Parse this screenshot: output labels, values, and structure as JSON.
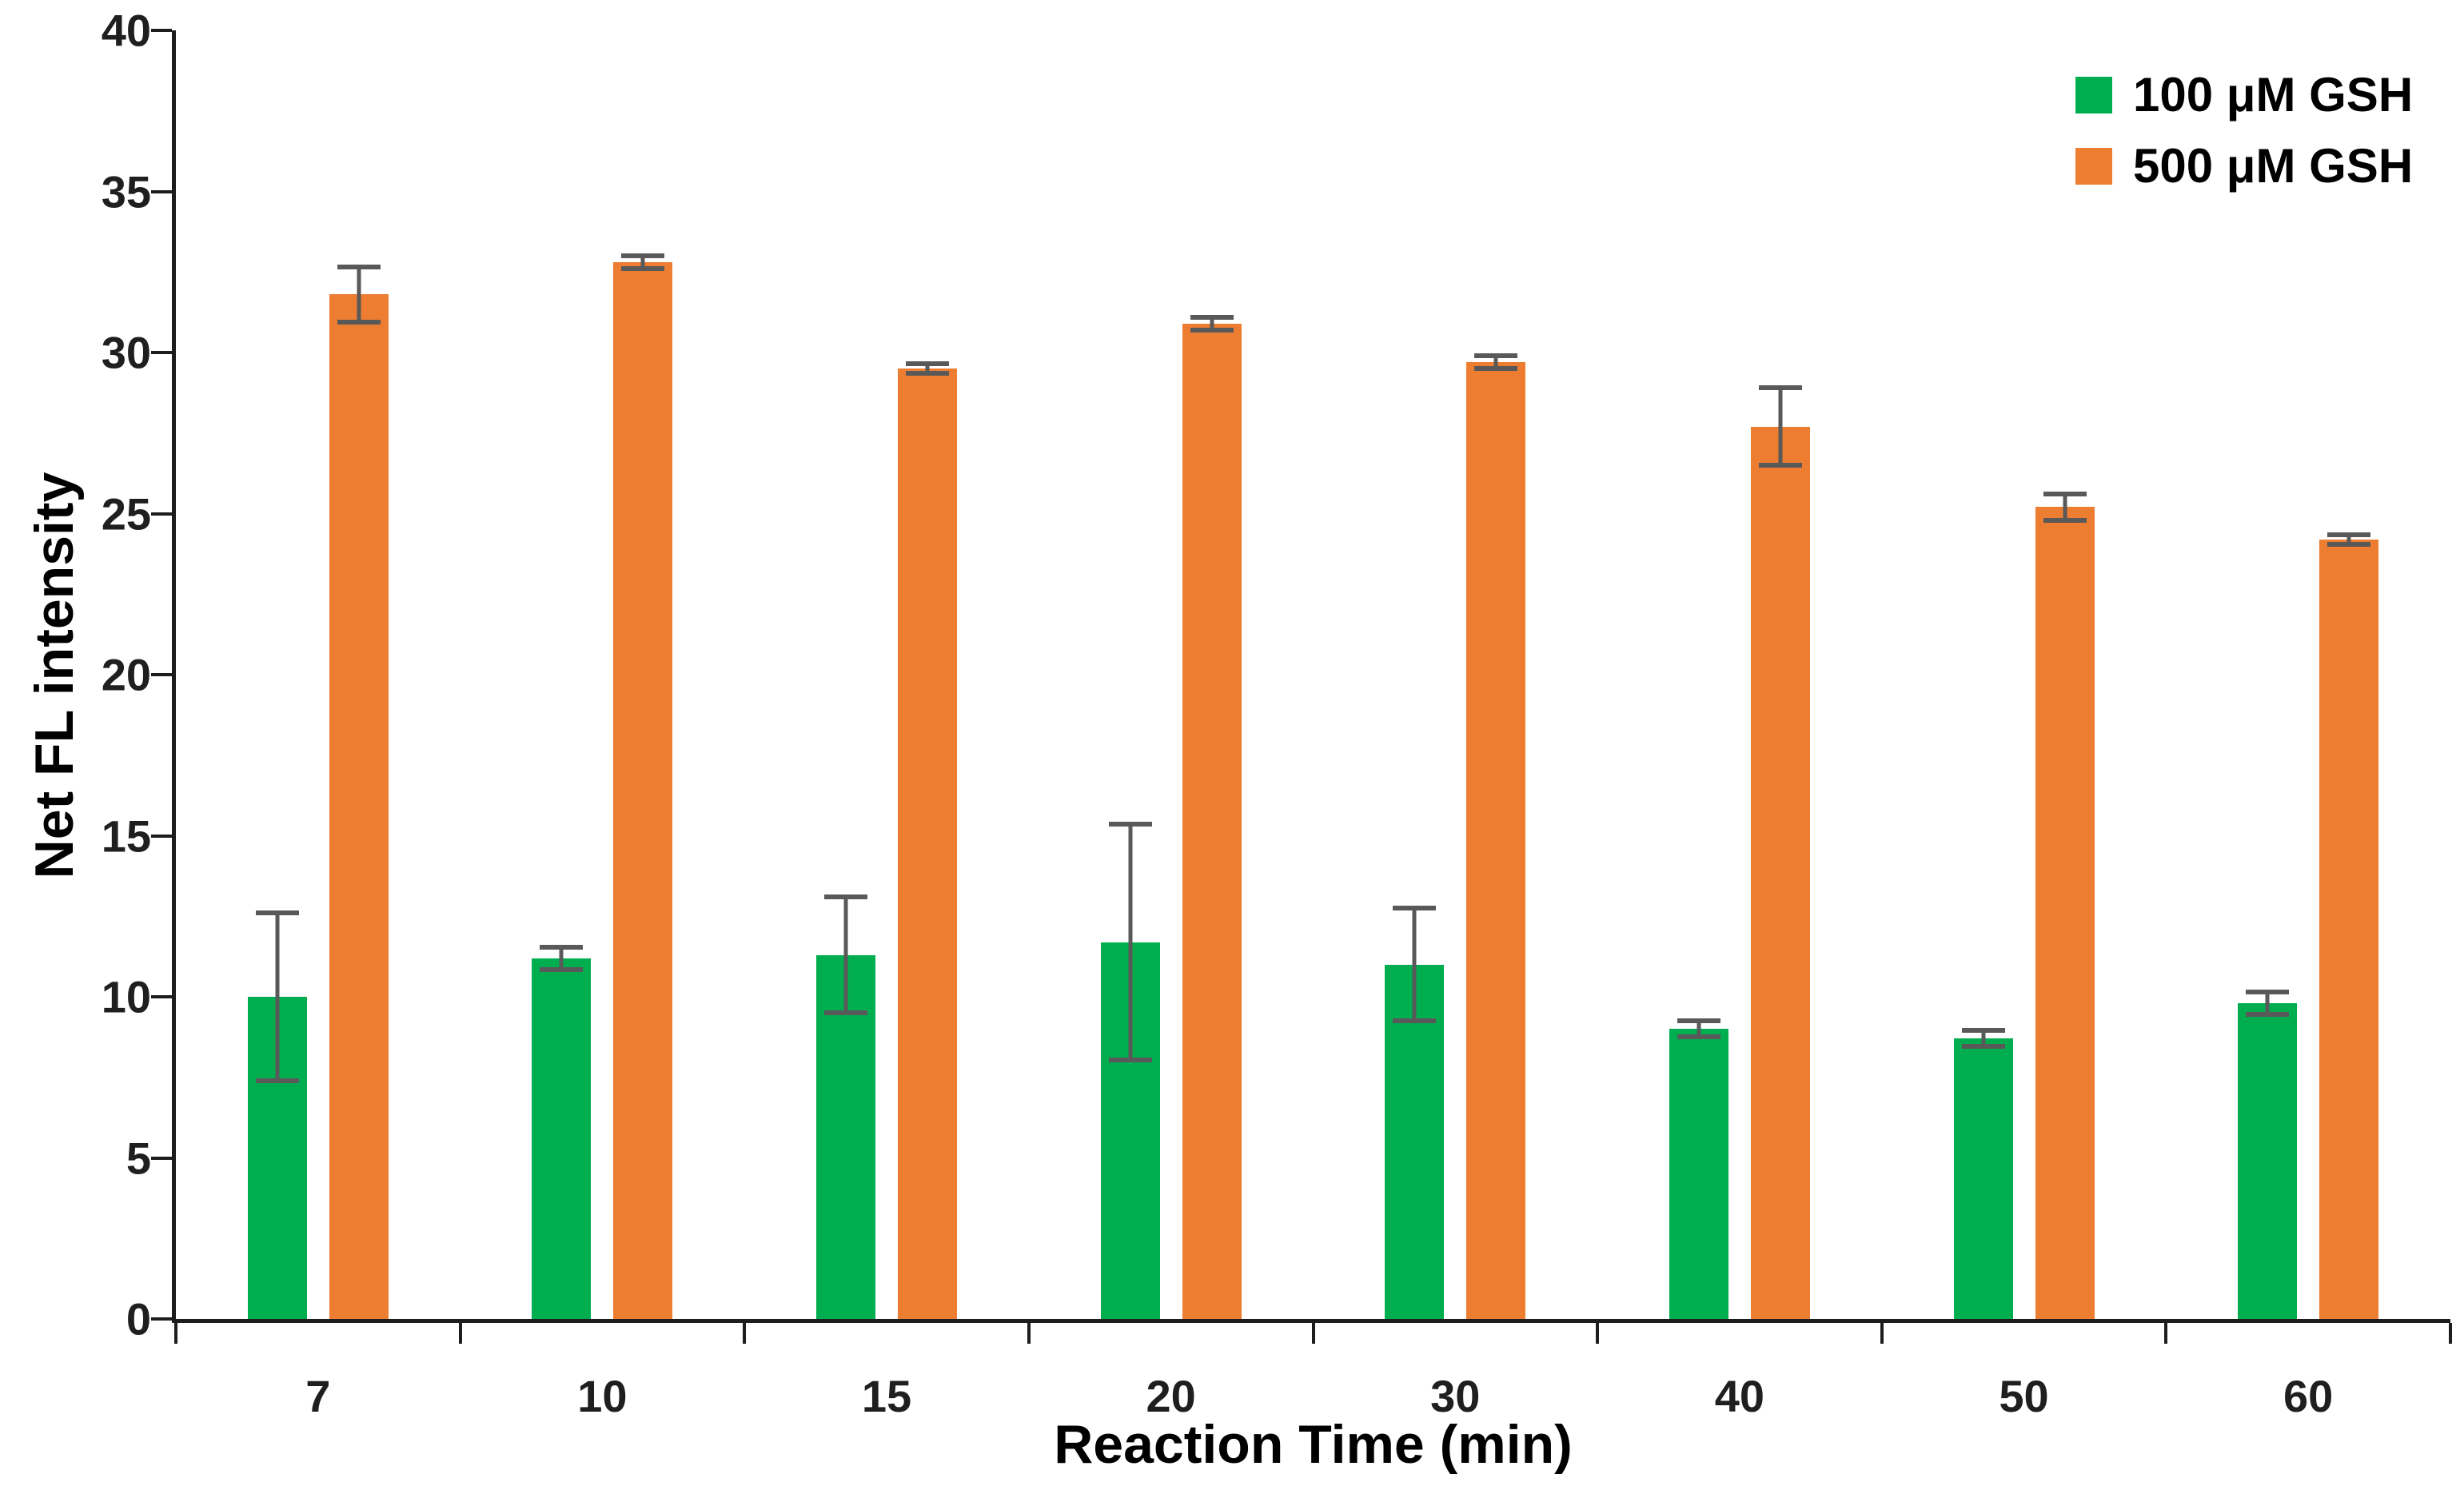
{
  "chart_data": {
    "type": "bar",
    "title": "",
    "xlabel": "Reaction Time (min)",
    "ylabel": "Net FL intensity",
    "categories": [
      "7",
      "10",
      "15",
      "20",
      "30",
      "40",
      "50",
      "60"
    ],
    "series": [
      {
        "name": "100 μM GSH",
        "color": "#00AE50",
        "values": [
          10.0,
          11.2,
          11.3,
          11.7,
          11.0,
          9.0,
          8.7,
          9.8
        ],
        "errors": [
          2.6,
          0.35,
          1.8,
          3.65,
          1.75,
          0.25,
          0.25,
          0.35
        ]
      },
      {
        "name": "500 μM GSH",
        "color": "#ED7D31",
        "values": [
          31.8,
          32.8,
          29.5,
          30.9,
          29.7,
          27.7,
          25.2,
          24.2
        ],
        "errors": [
          0.85,
          0.2,
          0.15,
          0.2,
          0.2,
          1.2,
          0.4,
          0.15
        ]
      }
    ],
    "ylim": [
      0,
      40
    ],
    "yticks": [
      0,
      5,
      10,
      15,
      20,
      25,
      30,
      35,
      40
    ],
    "grid": false,
    "legend_position": "top-right",
    "error_bar_color": "#595959",
    "axis_color": "#1d1d1d",
    "background_color": "#ffffff"
  }
}
